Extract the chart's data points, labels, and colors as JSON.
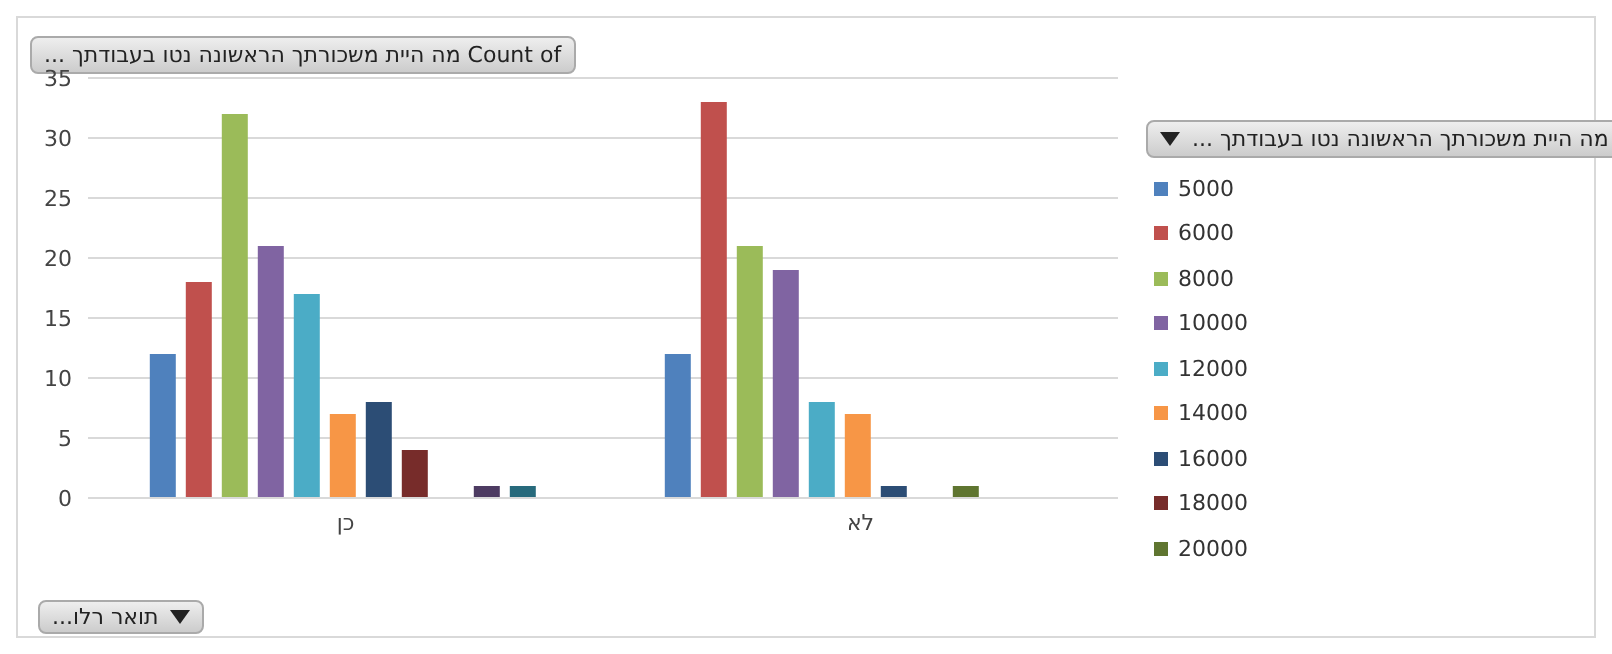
{
  "chart_data": {
    "type": "bar",
    "title": "Count of מה היית משכורתך הראשונה נטו בעבודתך ...",
    "legend_title": "מה היית משכורתך הראשונה נטו בעבודתך ...",
    "xlabel": "תואר רלו...",
    "categories": [
      "כן",
      "לא"
    ],
    "ylim": [
      0,
      35
    ],
    "yticks": [
      0,
      5,
      10,
      15,
      20,
      25,
      30,
      35
    ],
    "grid": "y",
    "legend": "right",
    "series": [
      {
        "name": "5000",
        "color": "#4f81bd",
        "values": [
          12,
          12
        ]
      },
      {
        "name": "6000",
        "color": "#c0504d",
        "values": [
          18,
          33
        ]
      },
      {
        "name": "8000",
        "color": "#9bbb59",
        "values": [
          32,
          21
        ]
      },
      {
        "name": "10000",
        "color": "#8064a2",
        "values": [
          21,
          19
        ]
      },
      {
        "name": "12000",
        "color": "#4bacc6",
        "values": [
          17,
          8
        ]
      },
      {
        "name": "14000",
        "color": "#f79646",
        "values": [
          7,
          7
        ]
      },
      {
        "name": "16000",
        "color": "#2c4d75",
        "values": [
          8,
          1
        ]
      },
      {
        "name": "18000",
        "color": "#772c2a",
        "values": [
          4,
          null
        ]
      },
      {
        "name": "20000",
        "color": "#5f7530",
        "values": [
          null,
          1
        ]
      },
      {
        "color": "#4d3b62",
        "values": [
          1,
          null
        ]
      },
      {
        "color": "#276a7c",
        "values": [
          1,
          null
        ]
      }
    ]
  }
}
